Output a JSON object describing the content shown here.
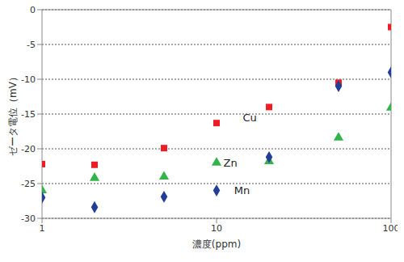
{
  "chart_data": {
    "type": "scatter",
    "x_label": "濃度(ppm)",
    "y_label": "ゼータ電位（mV）",
    "log": "x",
    "grid": true,
    "xlim": [
      1,
      100
    ],
    "xticks": [
      1,
      10,
      100
    ],
    "ylim": [
      -30,
      0
    ],
    "yticks": [
      0,
      -5,
      -10,
      -15,
      -20,
      -25,
      -30
    ],
    "x": [
      1,
      2,
      5,
      10,
      20,
      50,
      100
    ],
    "series": [
      {
        "name": "Cu",
        "color": "#ee1c25",
        "marker": "square",
        "values": [
          -22.2,
          -22.3,
          -19.9,
          -16.3,
          -14.0,
          -10.5,
          -2.5
        ]
      },
      {
        "name": "Zn",
        "color": "#33b44a",
        "marker": "triangle",
        "values": [
          -26.0,
          -24.2,
          -24.0,
          -22.0,
          -21.8,
          -18.4,
          -14.1
        ]
      },
      {
        "name": "Mn",
        "color": "#233e97",
        "marker": "diamond",
        "values": [
          -27.0,
          -28.4,
          -26.9,
          -26.0,
          -21.2,
          -11.0,
          -9.0
        ]
      }
    ],
    "annotations": [
      {
        "text": "Cu",
        "x": 15.5,
        "y": -15.5
      },
      {
        "text": "Zn",
        "x": 12,
        "y": -22
      },
      {
        "text": "Mn",
        "x": 14,
        "y": -26
      }
    ]
  }
}
